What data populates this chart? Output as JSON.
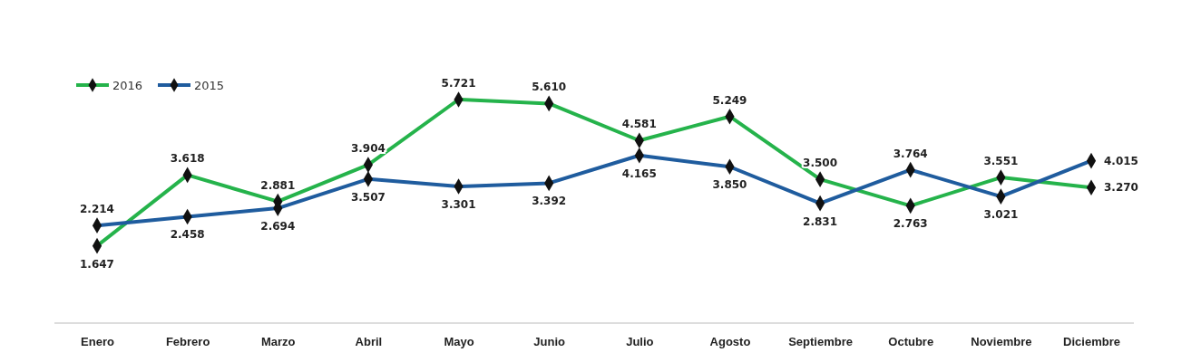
{
  "chart_data": {
    "type": "line",
    "categories": [
      "Enero",
      "Febrero",
      "Marzo",
      "Abril",
      "Mayo",
      "Junio",
      "Julio",
      "Agosto",
      "Septiembre",
      "Octubre",
      "Noviembre",
      "Diciembre"
    ],
    "series": [
      {
        "name": "2016",
        "color": "#25b34b",
        "values": [
          1647,
          3618,
          2881,
          3904,
          5721,
          5610,
          4581,
          5249,
          3500,
          2763,
          3551,
          3270
        ],
        "value_labels": [
          "1.647",
          "3.618",
          "2.881",
          "3.904",
          "5.721",
          "5.610",
          "4.581",
          "5.249",
          "3.500",
          "2.763",
          "3.551",
          "3.270"
        ]
      },
      {
        "name": "2015",
        "color": "#1f5c9e",
        "values": [
          2214,
          2458,
          2694,
          3507,
          3301,
          3392,
          4165,
          3850,
          2831,
          3764,
          3021,
          4015
        ],
        "value_labels": [
          "2.214",
          "2.458",
          "2.694",
          "3.507",
          "3.301",
          "3.392",
          "4.165",
          "3.850",
          "2.831",
          "3.764",
          "3.021",
          "4.015"
        ]
      }
    ],
    "tick_labels": "x",
    "marker": "diamond",
    "legend": "top left",
    "grid": false
  }
}
